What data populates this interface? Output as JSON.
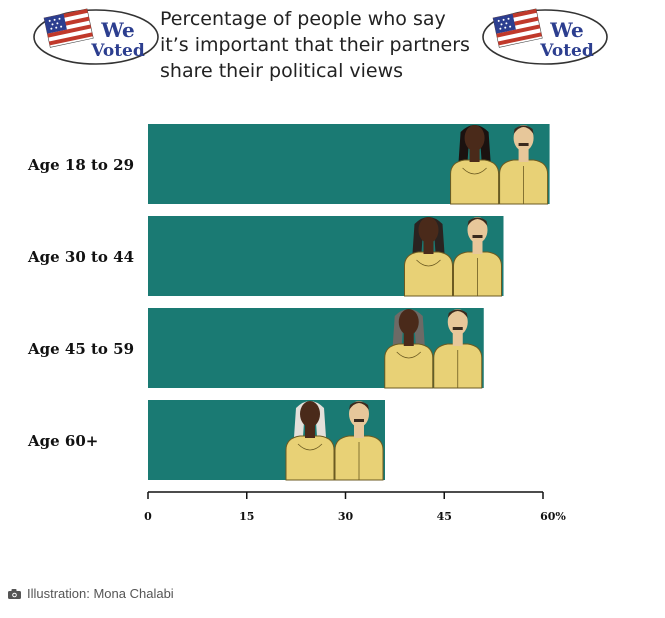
{
  "chart_data": {
    "type": "bar",
    "orientation": "horizontal",
    "title_lines": [
      "Percentage of people who say",
      "it’s important that their partners",
      "share their political views"
    ],
    "categories": [
      "Age 18 to 29",
      "Age 30 to 44",
      "Age 45 to 59",
      "Age 60+"
    ],
    "values": [
      61,
      54,
      51,
      36
    ],
    "x_ticks": [
      "0",
      "15",
      "30",
      "45",
      "60%"
    ],
    "x_tick_values": [
      0,
      15,
      30,
      45,
      60
    ],
    "xlim": [
      0,
      60
    ],
    "grid": false,
    "legend": "none",
    "colors": {
      "bar": "#1a7a73",
      "figure_body": "#e8d176",
      "figure_outline": "#6b5a21",
      "axis": "#111111"
    }
  },
  "stickers": {
    "left": {
      "line1": "We",
      "line2": "Voted"
    },
    "right": {
      "line1": "We",
      "line2": "Voted"
    }
  },
  "caption": {
    "icon": "camera-icon",
    "text": "Illustration: Mona Chalabi"
  }
}
